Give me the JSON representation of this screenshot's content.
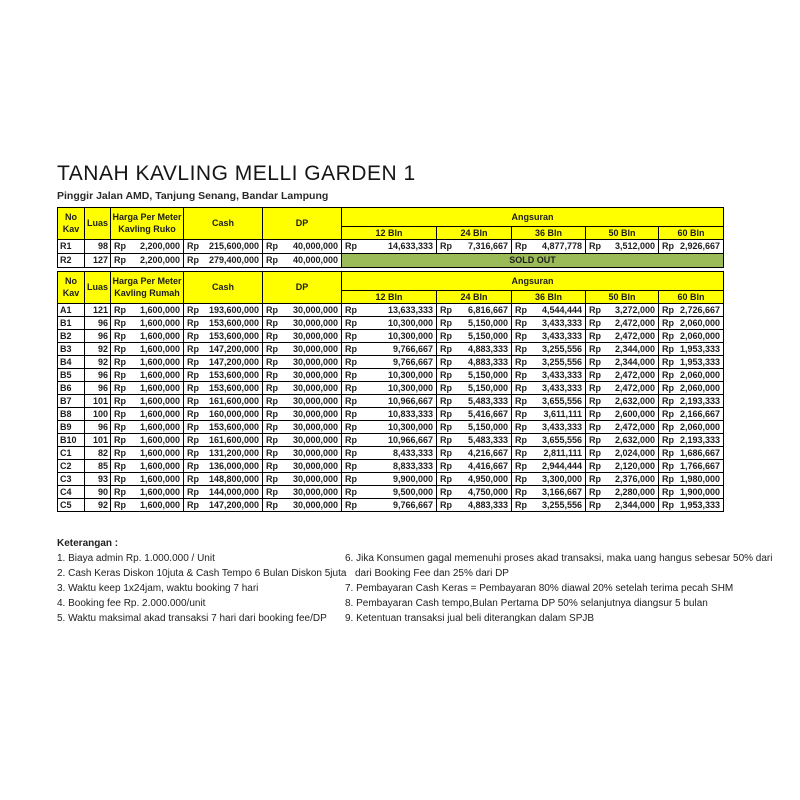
{
  "title": "TANAH KAVLING MELLI GARDEN 1",
  "subtitle": "Pinggir Jalan AMD, Tanjung Senang, Bandar Lampung",
  "currency": "Rp",
  "colors": {
    "header_bg": "#FFFF00",
    "soldout_bg": "#9BBB59",
    "border": "#000000"
  },
  "tables": [
    {
      "id": "table-ruko",
      "header": {
        "no_kav": "No Kav",
        "luas": "Luas",
        "harga": "Harga Per Meter Kavling Ruko",
        "cash": "Cash",
        "dp": "DP",
        "angsuran": "Angsuran",
        "months": [
          "12 Bln",
          "24 Bln",
          "36 Bln",
          "50 Bln",
          "60 Bln"
        ]
      },
      "rows": [
        {
          "kav": "R1",
          "luas": "98",
          "harga": "2,200,000",
          "cash": "215,600,000",
          "dp": "40,000,000",
          "angsuran": [
            "14,633,333",
            "7,316,667",
            "4,877,778",
            "3,512,000",
            "2,926,667"
          ]
        },
        {
          "kav": "R2",
          "luas": "127",
          "harga": "2,200,000",
          "cash": "279,400,000",
          "dp": "40,000,000",
          "sold_out": "SOLD OUT"
        }
      ]
    },
    {
      "id": "table-rumah",
      "header": {
        "no_kav": "No Kav",
        "luas": "Luas",
        "harga": "Harga Per Meter Kavling Rumah",
        "cash": "Cash",
        "dp": "DP",
        "angsuran": "Angsuran",
        "months": [
          "12 Bln",
          "24 Bln",
          "36 Bln",
          "50 Bln",
          "60 Bln"
        ]
      },
      "rows": [
        {
          "kav": "A1",
          "luas": "121",
          "harga": "1,600,000",
          "cash": "193,600,000",
          "dp": "30,000,000",
          "angsuran": [
            "13,633,333",
            "6,816,667",
            "4,544,444",
            "3,272,000",
            "2,726,667"
          ]
        },
        {
          "kav": "B1",
          "luas": "96",
          "harga": "1,600,000",
          "cash": "153,600,000",
          "dp": "30,000,000",
          "angsuran": [
            "10,300,000",
            "5,150,000",
            "3,433,333",
            "2,472,000",
            "2,060,000"
          ]
        },
        {
          "kav": "B2",
          "luas": "96",
          "harga": "1,600,000",
          "cash": "153,600,000",
          "dp": "30,000,000",
          "angsuran": [
            "10,300,000",
            "5,150,000",
            "3,433,333",
            "2,472,000",
            "2,060,000"
          ]
        },
        {
          "kav": "B3",
          "luas": "92",
          "harga": "1,600,000",
          "cash": "147,200,000",
          "dp": "30,000,000",
          "angsuran": [
            "9,766,667",
            "4,883,333",
            "3,255,556",
            "2,344,000",
            "1,953,333"
          ]
        },
        {
          "kav": "B4",
          "luas": "92",
          "harga": "1,600,000",
          "cash": "147,200,000",
          "dp": "30,000,000",
          "angsuran": [
            "9,766,667",
            "4,883,333",
            "3,255,556",
            "2,344,000",
            "1,953,333"
          ]
        },
        {
          "kav": "B5",
          "luas": "96",
          "harga": "1,600,000",
          "cash": "153,600,000",
          "dp": "30,000,000",
          "angsuran": [
            "10,300,000",
            "5,150,000",
            "3,433,333",
            "2,472,000",
            "2,060,000"
          ]
        },
        {
          "kav": "B6",
          "luas": "96",
          "harga": "1,600,000",
          "cash": "153,600,000",
          "dp": "30,000,000",
          "angsuran": [
            "10,300,000",
            "5,150,000",
            "3,433,333",
            "2,472,000",
            "2,060,000"
          ]
        },
        {
          "kav": "B7",
          "luas": "101",
          "harga": "1,600,000",
          "cash": "161,600,000",
          "dp": "30,000,000",
          "angsuran": [
            "10,966,667",
            "5,483,333",
            "3,655,556",
            "2,632,000",
            "2,193,333"
          ]
        },
        {
          "kav": "B8",
          "luas": "100",
          "harga": "1,600,000",
          "cash": "160,000,000",
          "dp": "30,000,000",
          "angsuran": [
            "10,833,333",
            "5,416,667",
            "3,611,111",
            "2,600,000",
            "2,166,667"
          ]
        },
        {
          "kav": "B9",
          "luas": "96",
          "harga": "1,600,000",
          "cash": "153,600,000",
          "dp": "30,000,000",
          "angsuran": [
            "10,300,000",
            "5,150,000",
            "3,433,333",
            "2,472,000",
            "2,060,000"
          ]
        },
        {
          "kav": "B10",
          "luas": "101",
          "harga": "1,600,000",
          "cash": "161,600,000",
          "dp": "30,000,000",
          "angsuran": [
            "10,966,667",
            "5,483,333",
            "3,655,556",
            "2,632,000",
            "2,193,333"
          ]
        },
        {
          "kav": "C1",
          "luas": "82",
          "harga": "1,600,000",
          "cash": "131,200,000",
          "dp": "30,000,000",
          "angsuran": [
            "8,433,333",
            "4,216,667",
            "2,811,111",
            "2,024,000",
            "1,686,667"
          ]
        },
        {
          "kav": "C2",
          "luas": "85",
          "harga": "1,600,000",
          "cash": "136,000,000",
          "dp": "30,000,000",
          "angsuran": [
            "8,833,333",
            "4,416,667",
            "2,944,444",
            "2,120,000",
            "1,766,667"
          ]
        },
        {
          "kav": "C3",
          "luas": "93",
          "harga": "1,600,000",
          "cash": "148,800,000",
          "dp": "30,000,000",
          "angsuran": [
            "9,900,000",
            "4,950,000",
            "3,300,000",
            "2,376,000",
            "1,980,000"
          ]
        },
        {
          "kav": "C4",
          "luas": "90",
          "harga": "1,600,000",
          "cash": "144,000,000",
          "dp": "30,000,000",
          "angsuran": [
            "9,500,000",
            "4,750,000",
            "3,166,667",
            "2,280,000",
            "1,900,000"
          ]
        },
        {
          "kav": "C5",
          "luas": "92",
          "harga": "1,600,000",
          "cash": "147,200,000",
          "dp": "30,000,000",
          "angsuran": [
            "9,766,667",
            "4,883,333",
            "3,255,556",
            "2,344,000",
            "1,953,333"
          ]
        }
      ]
    }
  ],
  "notes": {
    "heading": "Keterangan :",
    "left": [
      "1. Biaya admin Rp. 1.000.000 / Unit",
      "2. Cash Keras Diskon 10juta & Cash Tempo 6 Bulan Diskon 5juta",
      "3. Waktu keep 1x24jam, waktu booking 7 hari",
      "4. Booking fee Rp. 2.000.000/unit",
      "5. Waktu maksimal akad transaksi 7 hari dari booking fee/DP"
    ],
    "right": [
      {
        "text": "6. Jika Konsumen gagal memenuhi proses akad transaksi, maka uang hangus sebesar 50% dari",
        "indent": false
      },
      {
        "text": "dari Booking Fee dan 25% dari DP",
        "indent": true
      },
      {
        "text": "7. Pembayaran Cash Keras = Pembayaran 80% diawal 20% setelah terima pecah SHM",
        "indent": false
      },
      {
        "text": "8. Pembayaran Cash tempo,Bulan Pertama DP 50% selanjutnya diangsur  5 bulan",
        "indent": false
      },
      {
        "text": "9. Ketentuan transaksi jual beli diterangkan dalam SPJB",
        "indent": false
      }
    ]
  }
}
